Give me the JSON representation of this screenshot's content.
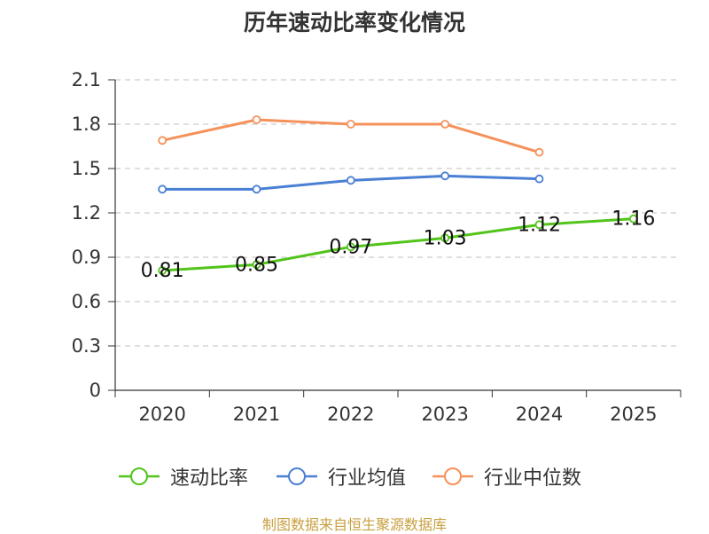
{
  "title": "历年速动比率变化情况",
  "source": "制图数据来自恒生聚源数据库",
  "chart_data": {
    "type": "line",
    "title": "历年速动比率变化情况",
    "categories": [
      "2020",
      "2021",
      "2022",
      "2023",
      "2024",
      "2025"
    ],
    "y_ticks": [
      "0",
      "0.3",
      "0.6",
      "0.9",
      "1.2",
      "1.5",
      "1.8",
      "2.1"
    ],
    "ylim": [
      0,
      2.1
    ],
    "grid": true,
    "legend_position": "bottom",
    "series": [
      {
        "name": "速动比率",
        "color": "#52c41a",
        "values": [
          0.81,
          0.85,
          0.97,
          1.03,
          1.12,
          1.16
        ],
        "labels": [
          "0.81",
          "0.85",
          "0.97",
          "1.03",
          "1.12",
          "1.16"
        ]
      },
      {
        "name": "行业均值",
        "color": "#4a7fd4",
        "values": [
          1.36,
          1.36,
          1.42,
          1.45,
          1.43,
          null
        ]
      },
      {
        "name": "行业中位数",
        "color": "#f5915a",
        "values": [
          1.69,
          1.83,
          1.8,
          1.8,
          1.61,
          null
        ]
      }
    ]
  }
}
